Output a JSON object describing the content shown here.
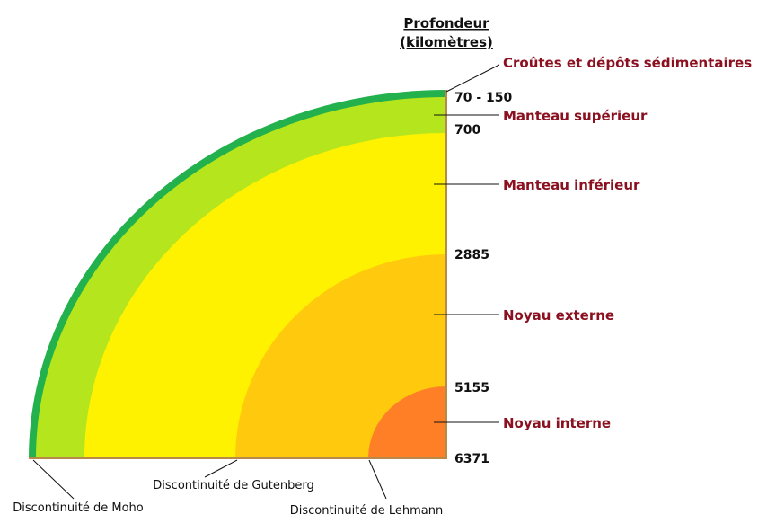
{
  "header": {
    "title": "Profondeur",
    "subtitle": "(kilomètres)"
  },
  "depths": [
    "70 - 150",
    "700",
    "2885",
    "5155",
    "6371"
  ],
  "layers": [
    {
      "label": "Croûtes et dépôts sédimentaires"
    },
    {
      "label": "Manteau supérieur"
    },
    {
      "label": "Manteau inférieur"
    },
    {
      "label": "Noyau externe"
    },
    {
      "label": "Noyau interne"
    }
  ],
  "discontinuities": [
    "Discontinuité de Moho",
    "Discontinuité de Gutenberg",
    "Discontinuité de Lehmann"
  ]
}
